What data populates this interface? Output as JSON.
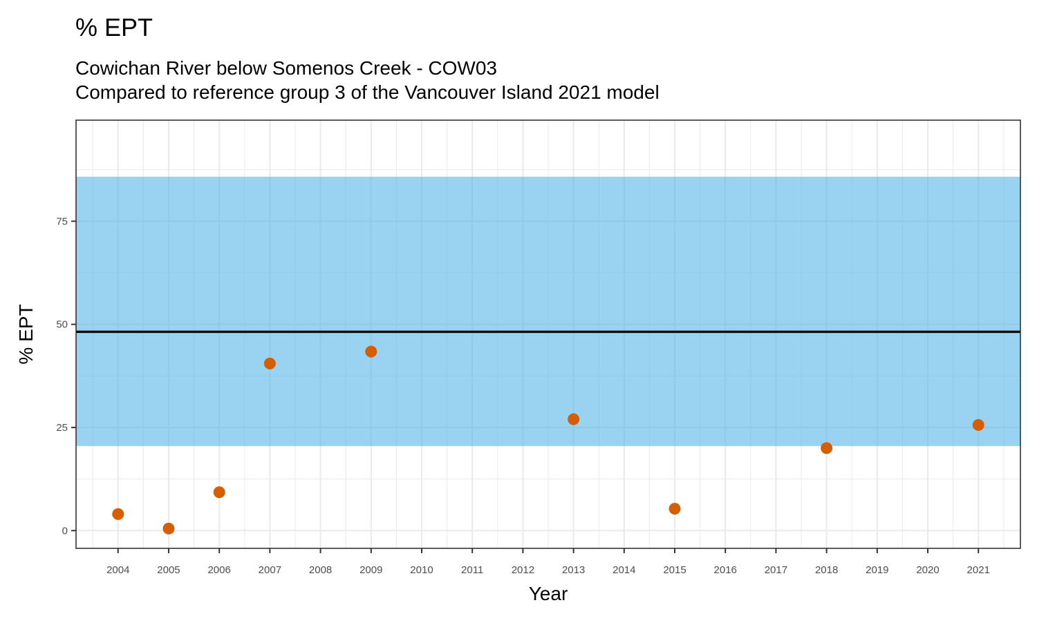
{
  "chart_data": {
    "type": "scatter",
    "title": "% EPT",
    "subtitle_lines": [
      "Cowichan River below Somenos Creek - COW03",
      "Compared to reference group 3 of the Vancouver Island 2021 model"
    ],
    "xlabel": "Year",
    "ylabel": "% EPT",
    "x_categories": [
      "2004",
      "2005",
      "2006",
      "2007",
      "2008",
      "2009",
      "2010",
      "2011",
      "2012",
      "2013",
      "2014",
      "2015",
      "2016",
      "2017",
      "2018",
      "2019",
      "2020",
      "2021"
    ],
    "xlim": [
      2003.17,
      2021.83
    ],
    "ylim": [
      -4.3,
      99.5
    ],
    "y_ticks": [
      0,
      25,
      50,
      75
    ],
    "y_minor_ticks": [
      12.5,
      37.5,
      62.5,
      87.5
    ],
    "grid": true,
    "reference_band": {
      "lower": 20.5,
      "upper": 85.8,
      "color": "#56B4E9",
      "opacity": 0.6
    },
    "reference_line": {
      "value": 48.2,
      "color": "#000000"
    },
    "series": [
      {
        "color": "#D55E00",
        "x": [
          2004,
          2005,
          2006,
          2007,
          2009,
          2013,
          2015,
          2018,
          2021
        ],
        "y": [
          4.0,
          0.5,
          9.3,
          40.5,
          43.4,
          27.0,
          5.3,
          20.0,
          25.6
        ]
      }
    ]
  }
}
